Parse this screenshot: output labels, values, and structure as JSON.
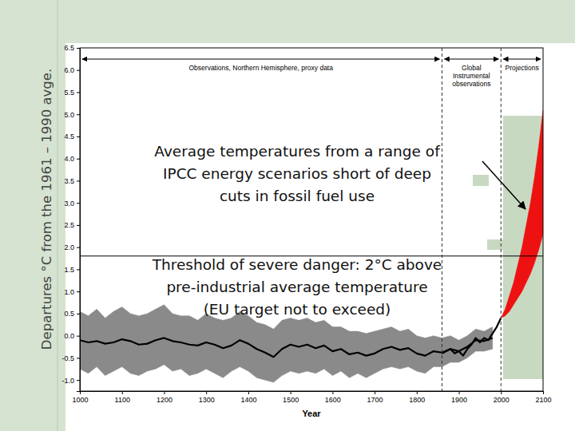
{
  "chart_data": {
    "type": "line",
    "y_label": "Departures °C from the 1961 – 1990 avge.",
    "x_label": "Year",
    "xlim": [
      1000,
      2100
    ],
    "xticks": [
      1000,
      1100,
      1200,
      1300,
      1400,
      1500,
      1600,
      1700,
      1800,
      1900,
      2000,
      2100
    ],
    "ylim": [
      -1.25,
      6.5
    ],
    "yticks": [
      {
        "value": -1,
        "label": "-1.0"
      },
      -0.5,
      {
        "value": 0,
        "label": "0.0"
      },
      0.5,
      {
        "value": 1,
        "label": "1.0"
      },
      1.5,
      {
        "value": 2,
        "label": "2.0"
      },
      2.5,
      {
        "value": 3,
        "label": "3.0"
      },
      3.5,
      {
        "value": 4,
        "label": "4.0"
      },
      4.5,
      {
        "value": 5,
        "label": "5.0"
      },
      5.5,
      {
        "value": 6,
        "label": "6.0"
      },
      6.5
    ],
    "periods": [
      {
        "label": [
          "Observations, Northern Hemisphere, proxy data"
        ],
        "start": 1000,
        "end": 1860
      },
      {
        "label": [
          "Global",
          "Instrumental",
          "observations"
        ],
        "start": 1860,
        "end": 2000
      },
      {
        "label": [
          "Projections"
        ],
        "start": 2000,
        "end": 2100
      }
    ],
    "series": [
      {
        "type": "area",
        "color": "#8a8a8a",
        "x": [
          1000,
          1020,
          1040,
          1060,
          1080,
          1100,
          1120,
          1140,
          1160,
          1180,
          1200,
          1220,
          1240,
          1260,
          1280,
          1300,
          1320,
          1340,
          1360,
          1380,
          1400,
          1420,
          1440,
          1460,
          1480,
          1500,
          1520,
          1540,
          1560,
          1580,
          1600,
          1620,
          1640,
          1660,
          1680,
          1700,
          1720,
          1740,
          1760,
          1780,
          1800,
          1820,
          1840,
          1860,
          1880,
          1900,
          1920,
          1940,
          1960,
          1980
        ],
        "lower": [
          -0.75,
          -0.85,
          -0.7,
          -0.9,
          -0.8,
          -0.7,
          -0.85,
          -0.9,
          -0.8,
          -0.75,
          -0.65,
          -0.8,
          -0.75,
          -0.9,
          -0.85,
          -0.75,
          -0.85,
          -0.95,
          -0.8,
          -0.7,
          -0.8,
          -0.95,
          -1.0,
          -1.05,
          -0.9,
          -0.8,
          -0.85,
          -0.8,
          -0.85,
          -0.75,
          -0.9,
          -0.8,
          -0.95,
          -0.85,
          -0.95,
          -0.85,
          -0.75,
          -0.7,
          -0.75,
          -0.7,
          -0.8,
          -0.85,
          -0.7,
          -0.7,
          -0.6,
          -0.6,
          -0.5,
          -0.35,
          -0.35,
          -0.3
        ],
        "upper": [
          0.55,
          0.45,
          0.6,
          0.4,
          0.55,
          0.65,
          0.5,
          0.45,
          0.5,
          0.6,
          0.7,
          0.5,
          0.45,
          0.45,
          0.35,
          0.5,
          0.4,
          0.35,
          0.4,
          0.55,
          0.45,
          0.3,
          0.25,
          0.15,
          0.35,
          0.4,
          0.35,
          0.4,
          0.3,
          0.35,
          0.2,
          0.2,
          0.1,
          0.1,
          0.05,
          0.1,
          0.15,
          0.2,
          0.1,
          0.15,
          0.0,
          -0.05,
          0.0,
          -0.05,
          0.0,
          -0.1,
          0.0,
          0.15,
          0.1,
          0.2
        ]
      },
      {
        "type": "line",
        "color": "#000000",
        "x": [
          1000,
          1020,
          1040,
          1060,
          1080,
          1100,
          1120,
          1140,
          1160,
          1180,
          1200,
          1220,
          1240,
          1260,
          1280,
          1300,
          1320,
          1340,
          1360,
          1380,
          1400,
          1420,
          1440,
          1460,
          1480,
          1500,
          1520,
          1540,
          1560,
          1580,
          1600,
          1620,
          1640,
          1660,
          1680,
          1700,
          1720,
          1740,
          1760,
          1780,
          1800,
          1820,
          1840,
          1860,
          1880,
          1900,
          1920,
          1940,
          1960,
          1980
        ],
        "values": [
          -0.1,
          -0.15,
          -0.12,
          -0.18,
          -0.15,
          -0.08,
          -0.12,
          -0.2,
          -0.18,
          -0.1,
          -0.05,
          -0.12,
          -0.15,
          -0.2,
          -0.22,
          -0.15,
          -0.2,
          -0.28,
          -0.22,
          -0.1,
          -0.18,
          -0.3,
          -0.38,
          -0.48,
          -0.3,
          -0.2,
          -0.25,
          -0.2,
          -0.28,
          -0.22,
          -0.35,
          -0.3,
          -0.42,
          -0.38,
          -0.45,
          -0.4,
          -0.3,
          -0.25,
          -0.32,
          -0.28,
          -0.4,
          -0.45,
          -0.35,
          -0.38,
          -0.3,
          -0.35,
          -0.25,
          -0.1,
          -0.12,
          -0.05
        ]
      },
      {
        "type": "line",
        "color": "#000000",
        "x": [
          1860,
          1870,
          1880,
          1890,
          1900,
          1910,
          1920,
          1930,
          1940,
          1950,
          1960,
          1970,
          1980,
          1990,
          2000
        ],
        "values": [
          -0.4,
          -0.35,
          -0.3,
          -0.4,
          -0.35,
          -0.45,
          -0.3,
          -0.2,
          -0.05,
          -0.15,
          -0.05,
          -0.1,
          0.05,
          0.2,
          0.4
        ]
      },
      {
        "type": "area",
        "color": "#ee1111",
        "x": [
          2000,
          2010,
          2020,
          2030,
          2040,
          2050,
          2060,
          2070,
          2080,
          2090,
          2100
        ],
        "lower": [
          0.4,
          0.45,
          0.55,
          0.7,
          0.85,
          1.0,
          1.2,
          1.4,
          1.65,
          1.95,
          2.3
        ],
        "upper": [
          0.4,
          0.6,
          0.9,
          1.2,
          1.6,
          2.0,
          2.5,
          3.0,
          3.6,
          4.3,
          5.1
        ]
      }
    ],
    "threshold": {
      "value": 1.8
    },
    "annotations": [
      {
        "text": [
          "Average temperatures from a range of",
          "IPCC energy scenarios short of deep",
          "cuts in fossil fuel use"
        ]
      },
      {
        "text": [
          "Threshold of severe danger: 2°C above",
          "pre-industrial average temperature",
          "(EU target not to exceed)"
        ]
      }
    ]
  }
}
